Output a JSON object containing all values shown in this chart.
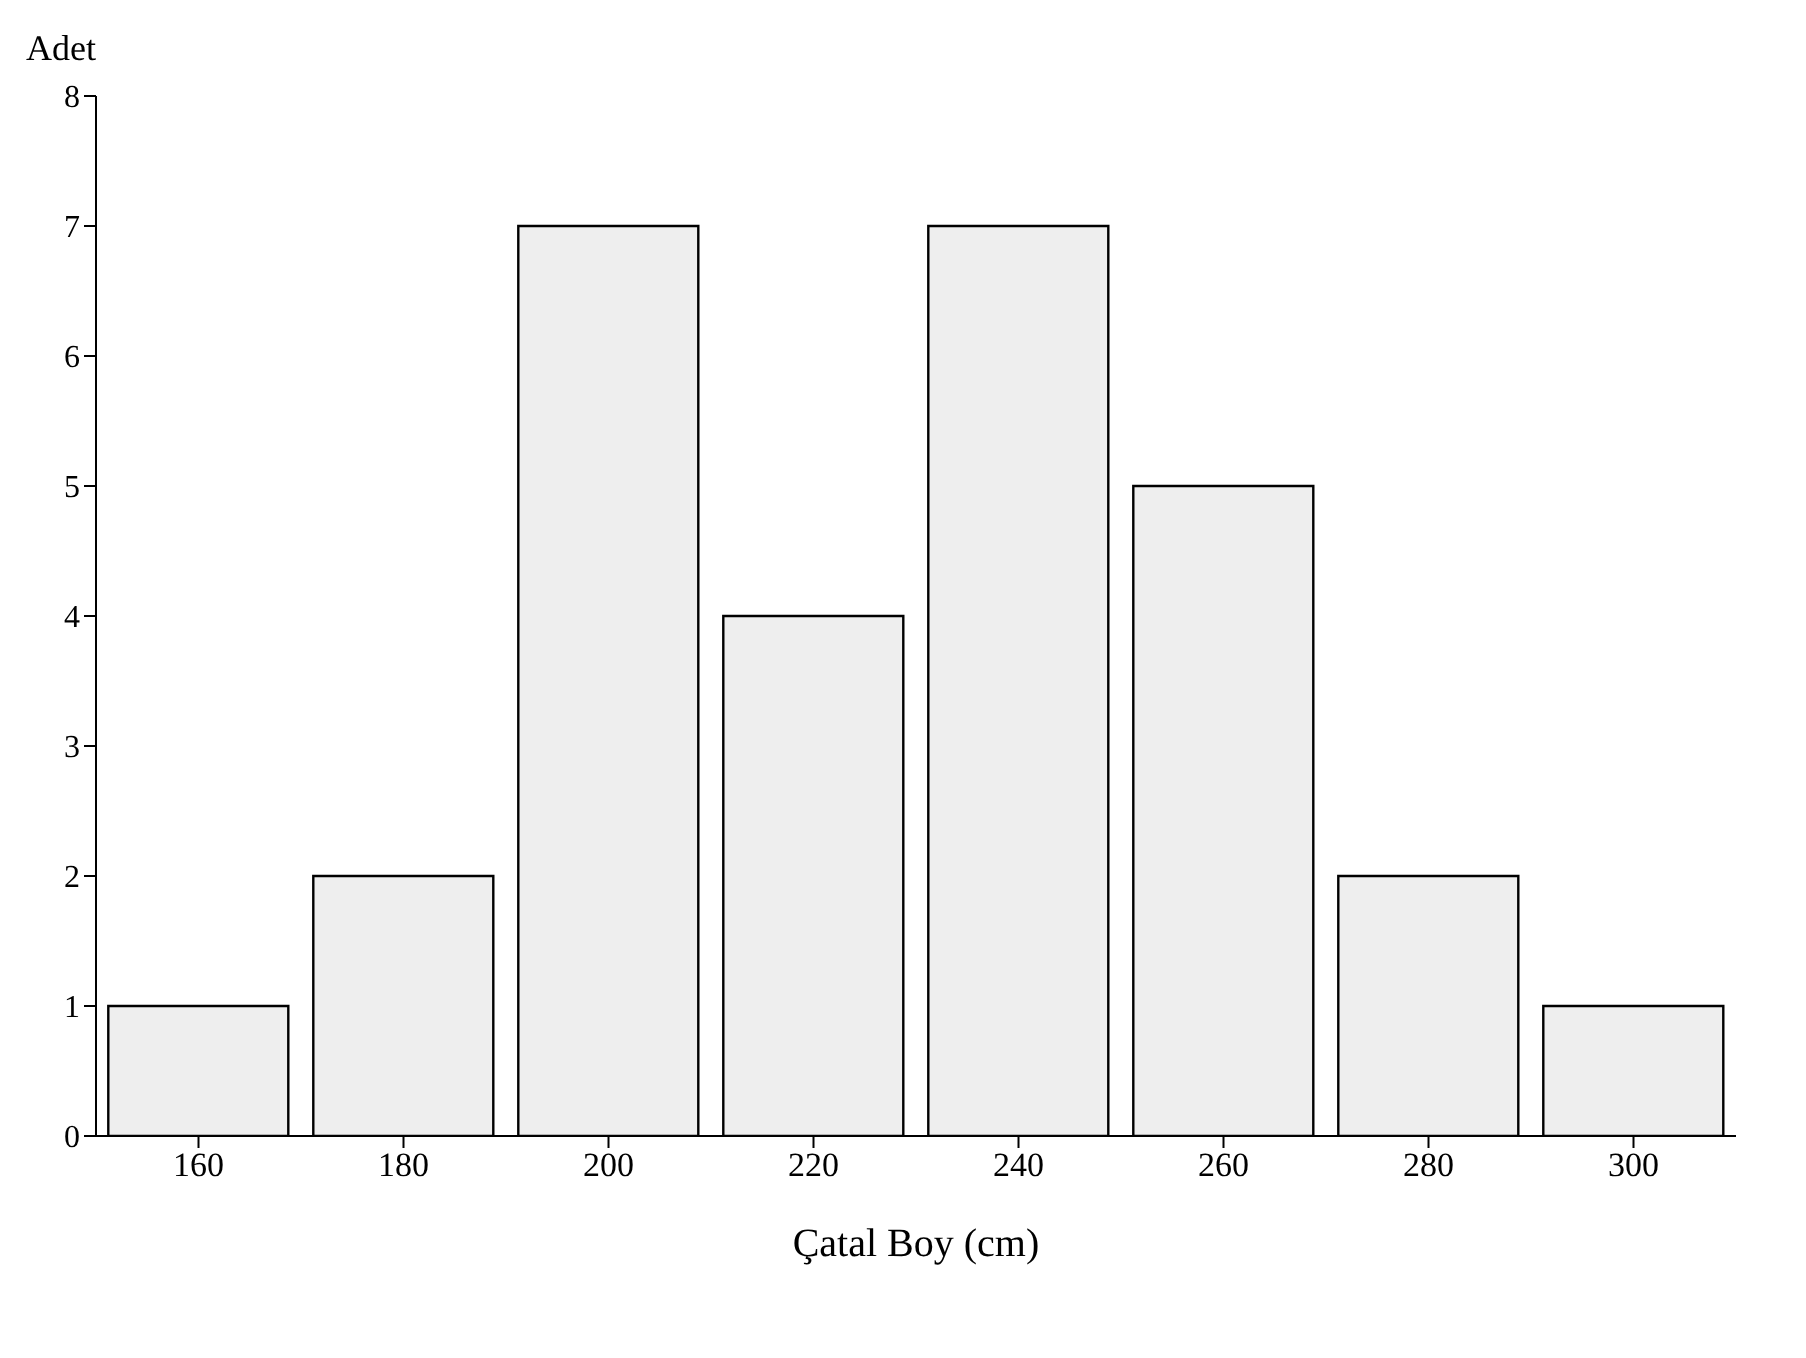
{
  "chart_data": {
    "type": "bar",
    "xlabel": "Çatal Boy (cm)",
    "ylabel": "Adet",
    "categories": [
      "160",
      "180",
      "200",
      "220",
      "240",
      "260",
      "280",
      "300"
    ],
    "values": [
      1,
      2,
      7,
      4,
      7,
      5,
      2,
      1
    ],
    "color": "#eeeeee",
    "ylim": [
      0,
      8
    ],
    "yticks": [
      0,
      1,
      2,
      3,
      4,
      5,
      6,
      7,
      8
    ],
    "grid": false
  }
}
